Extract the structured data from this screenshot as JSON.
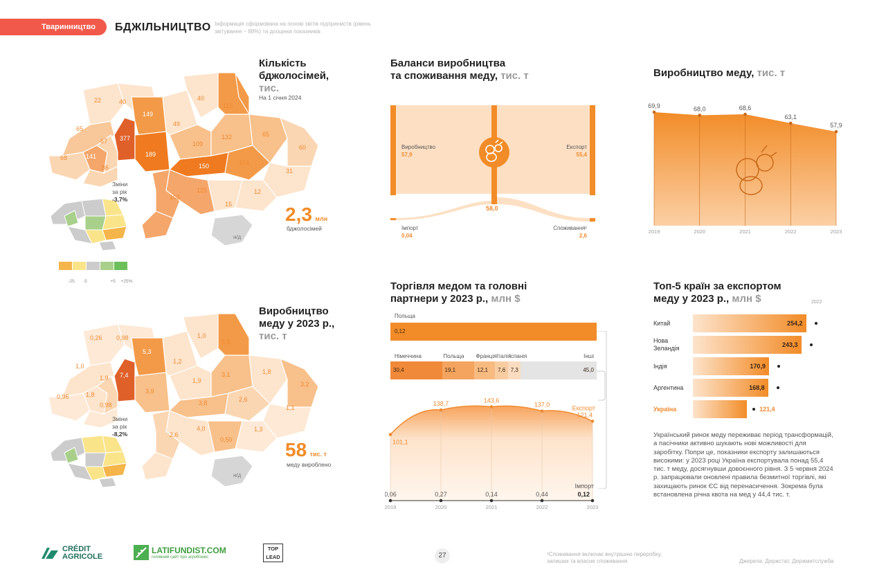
{
  "header": {
    "tag": "Тваринництво",
    "title": "БДЖІЛЬНИЦТВО",
    "note": "Інформація сформована на основі звітів підприємств (рівень звітування ~ 88%) та дооцінки показників"
  },
  "colonies": {
    "title_line1": "Кількість",
    "title_line2": "бджолосімей,",
    "unit": "тис.",
    "date": "На 1 січня 2024",
    "change_label_1": "Зміни",
    "change_label_2": "за рік",
    "change_value": "-3,7%",
    "total_value": "2,3",
    "total_unit": "млн",
    "total_caption": "бджолосімей",
    "region_values": [
      "22",
      "40",
      "65",
      "67",
      "68",
      "141",
      "86",
      "377",
      "149",
      "189",
      "49",
      "40",
      "115",
      "109",
      "132",
      "150",
      "104",
      "65",
      "60",
      "31",
      "12",
      "15",
      "125",
      "103"
    ],
    "na_label": "н/д",
    "legend": [
      "-25",
      "-5",
      "+5",
      "+25%"
    ],
    "legend_colors": [
      "#f5b54a",
      "#f9e48a",
      "#cccccc",
      "#a8d08a",
      "#6cbf5a"
    ]
  },
  "honey_map": {
    "title_line1": "Виробництво",
    "title_line2": "меду у 2023 р.,",
    "unit": "тис. т",
    "change_label_1": "Зміни",
    "change_label_2": "за рік",
    "change_value": "-8,2%",
    "total_value": "58",
    "total_unit": "тис. т",
    "total_caption": "меду вироблено",
    "region_values": [
      "0,26",
      "0,98",
      "1,0",
      "7,4",
      "5,3",
      "1,9",
      "1,8",
      "0,96",
      "0,98",
      "3,9",
      "1,2",
      "1,0",
      "5,5",
      "1,9",
      "3,1",
      "1,8",
      "3,2",
      "3,8",
      "2,6",
      "2,6",
      "4,0",
      "0,50",
      "1,3",
      "1,1"
    ],
    "na_label": "н/д"
  },
  "balance": {
    "title_line1": "Баланси виробництва",
    "title_line2": "та споживання меду,",
    "unit": "тис. т",
    "production_label": "Виробництво",
    "production_value": "57,9",
    "export_label": "Експорт",
    "export_value": "55,4",
    "middle_value": "58,0",
    "import_label": "Імпорт",
    "import_value": "0,04",
    "consumption_label": "Споживання¹",
    "consumption_value": "2,6"
  },
  "production_chart": {
    "title": "Виробництво меду,",
    "unit": "тис. т"
  },
  "trade": {
    "title_line1": "Торгівля медом та головні",
    "title_line2": "партнери у 2023 р.,",
    "unit": "млн $",
    "import_partner": "Польща",
    "import_value": "0,12",
    "export_partners": [
      {
        "name": "Німеччина",
        "value": "30,4",
        "color": "#f08a3a"
      },
      {
        "name": "Польща",
        "value": "19,1",
        "color": "#f4a45e"
      },
      {
        "name": "Франція",
        "value": "12,1",
        "color": "#f7bb82"
      },
      {
        "name": "Італія",
        "value": "7,6",
        "color": "#f9cda2"
      },
      {
        "name": "Іспанія",
        "value": "7,3",
        "color": "#fbdcc0"
      },
      {
        "name": "Інші",
        "value": "45,0",
        "color": "#e4e4e4"
      }
    ],
    "export_label": "Експорт",
    "import_label": "Імпорт"
  },
  "top5": {
    "title_line1": "Топ-5 країн за експортом",
    "title_line2": "меду у 2023 р.,",
    "unit": "млн $",
    "year_marker": "2022",
    "countries": [
      {
        "name": "Китай",
        "value": "254,2",
        "num": 254.2
      },
      {
        "name": "Нова Зеландія",
        "value": "243,3",
        "num": 243.3
      },
      {
        "name": "Індія",
        "value": "170,9",
        "num": 170.9
      },
      {
        "name": "Аргентина",
        "value": "168,8",
        "num": 168.8
      },
      {
        "name": "Україна",
        "value": "121,4",
        "num": 121.4
      }
    ]
  },
  "paragraph": "Український ринок меду переживає період трансформацій, а пасічники активно шукають нові можливості для заробітку. Попри це, показники експорту залишаються високими: у 2023 році Україна експортувала понад 55,4 тис. т меду, досягнувши довоєнного рівня. З 5 червня 2024 р. запрацювали оновлені правила безмитної торгівлі, які захищають ринок ЄС від перенасичення. Зокрема була встановлена річна квота на мед у 44,4 тис. т.",
  "footer": {
    "credit_agricole_1": "CRÉDIT",
    "credit_agricole_2": "AGRICOLE",
    "latifundist": "LATIFUNDIST.COM",
    "latifundist_sub": "головний сайт про агробізнес",
    "toplead_1": "TOP",
    "toplead_2": "LEAD",
    "page_number": "27",
    "footnote": "¹Споживання включає внутрішню переробку, запишки та власне споживання",
    "source": "Джерела: Держстат, Держмитслужба"
  },
  "chart_data": [
    {
      "type": "area",
      "title": "Виробництво меду, тис. т",
      "x": [
        "2019",
        "2020",
        "2021",
        "2022",
        "2023"
      ],
      "values": [
        69.9,
        68.0,
        68.6,
        63.1,
        57.9
      ],
      "labels": [
        "69,9",
        "68,0",
        "68,6",
        "63,1",
        "57,9"
      ],
      "ylim": [
        0,
        75
      ],
      "color": "#f28c28"
    },
    {
      "type": "area",
      "title": "Торгівля медом, млн $",
      "x": [
        "2019",
        "2020",
        "2021",
        "2022",
        "2023"
      ],
      "series": [
        {
          "name": "Експорт",
          "values": [
            101.1,
            138.7,
            143.6,
            137.0,
            121.4
          ],
          "labels": [
            "101,1",
            "138,7",
            "143,6",
            "137,0",
            "121,4"
          ]
        },
        {
          "name": "Імпорт",
          "values": [
            0.06,
            0.27,
            0.14,
            0.44,
            0.12
          ],
          "labels": [
            "0,06",
            "0,27",
            "0,14",
            "0,44",
            "0,12"
          ]
        }
      ],
      "ylim": [
        0,
        160
      ]
    },
    {
      "type": "bar",
      "title": "Топ-5 країн за експортом меду у 2023 р., млн $",
      "categories": [
        "Китай",
        "Нова Зеландія",
        "Індія",
        "Аргентина",
        "Україна"
      ],
      "values": [
        254.2,
        243.3,
        170.9,
        168.8,
        121.4
      ],
      "xlim": [
        0,
        280
      ]
    }
  ]
}
